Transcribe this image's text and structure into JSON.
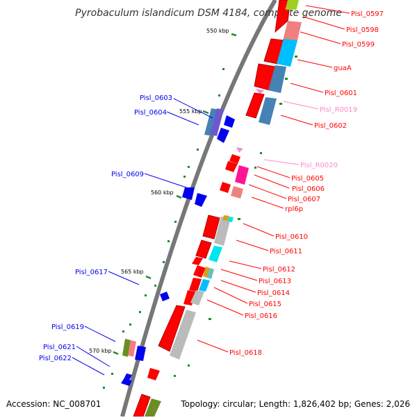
{
  "title": "Pyrobaculum islandicum DSM 4184, complete genome",
  "accession": "Accession: NC_008701",
  "topology": "Topology: circular; Length: 1,826,402 bp; Genes: 2,026",
  "colors": {
    "backbone": "#777777",
    "forward_gene": "#ff0000",
    "reverse_gene": "#0000ee",
    "rna_label": "#ff88cc",
    "gc_tick": "#228b22",
    "gray_track": "#bbbbbb",
    "steel_track": "#4682b4",
    "cyan_track": "#00bfff",
    "olive_track": "#6b8e23"
  },
  "kbp_labels": [
    "550 kbp",
    "555 kbp",
    "560 kbp",
    "565 kbp",
    "570 kbp"
  ],
  "right_labels": [
    "Pisl_0597",
    "Pisl_0598",
    "Pisl_0599",
    "guaA",
    "Pisl_0601",
    "Pisl_R0019",
    "Pisl_0602",
    "Pisl_R0020",
    "Pisl_0605",
    "Pisl_0606",
    "Pisl_0607",
    "rpl6p",
    "Pisl_0610",
    "Pisl_0611",
    "Pisl_0612",
    "Pisl_0613",
    "Pisl_0614",
    "Pisl_0615",
    "Pisl_0616",
    "Pisl_0618"
  ],
  "left_labels": [
    "Pisl_0603",
    "Pisl_0604",
    "Pisl_0609",
    "Pisl_0617",
    "Pisl_0619",
    "Pisl_0621",
    "Pisl_0622"
  ]
}
